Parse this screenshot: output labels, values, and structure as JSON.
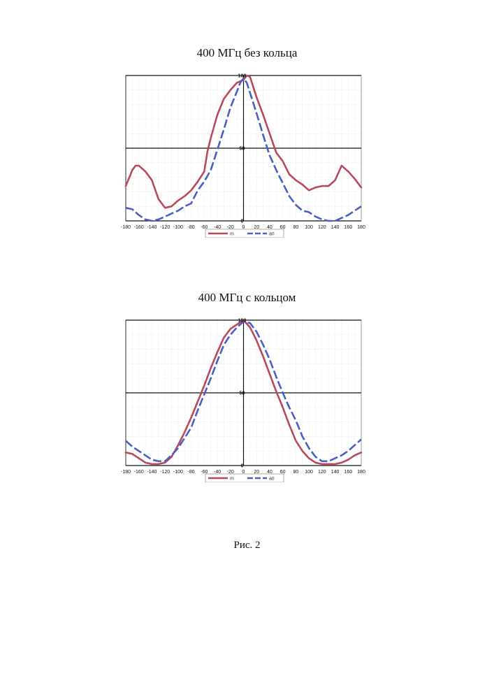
{
  "chart_data": [
    {
      "type": "line",
      "title": "400 МГц без кольца",
      "xlim": [
        -180,
        180
      ],
      "ylim": [
        0,
        100
      ],
      "x_ticks": [
        "-180",
        "-160",
        "-140",
        "-120",
        "-100",
        "-80",
        "-60",
        "-40",
        "-20",
        "0",
        "20",
        "40",
        "60",
        "80",
        "100",
        "120",
        "140",
        "160",
        "180"
      ],
      "y_ticks": [
        "0",
        "50",
        "100"
      ],
      "grid": true,
      "legend": "bottom-center",
      "series": [
        {
          "name": "m",
          "color": "#b84a5a",
          "dash": "solid",
          "x": [
            -180,
            -170,
            -165,
            -160,
            -150,
            -140,
            -130,
            -120,
            -110,
            -100,
            -90,
            -80,
            -70,
            -60,
            -55,
            -50,
            -40,
            -30,
            -20,
            -10,
            0,
            5,
            10,
            20,
            30,
            40,
            50,
            60,
            70,
            80,
            90,
            100,
            110,
            120,
            130,
            140,
            150,
            160,
            170,
            180
          ],
          "y": [
            24,
            35,
            38,
            38,
            34,
            28,
            15,
            9,
            10,
            14,
            17,
            21,
            27,
            34,
            48,
            57,
            73,
            84,
            90,
            95,
            97,
            100,
            99,
            85,
            73,
            60,
            47,
            41,
            32,
            28,
            25,
            21,
            23,
            24,
            24,
            28,
            38,
            34,
            29,
            23
          ]
        },
        {
          "name": "aп",
          "color": "#4a5fc4",
          "dash": "dashed",
          "x": [
            -180,
            -170,
            -160,
            -150,
            -140,
            -130,
            -120,
            -110,
            -100,
            -90,
            -80,
            -70,
            -60,
            -50,
            -40,
            -30,
            -20,
            -10,
            -5,
            0,
            5,
            10,
            20,
            30,
            40,
            50,
            60,
            70,
            80,
            90,
            100,
            110,
            120,
            130,
            140,
            150,
            160,
            170,
            180
          ],
          "y": [
            9,
            8,
            4,
            1,
            0,
            1,
            3,
            5,
            7,
            10,
            12,
            21,
            27,
            35,
            49,
            63,
            78,
            89,
            95,
            98,
            95,
            88,
            74,
            59,
            45,
            35,
            26,
            17,
            11,
            7,
            6,
            3,
            1,
            0,
            0,
            2,
            4,
            7,
            10
          ]
        }
      ]
    },
    {
      "type": "line",
      "title": "400 МГц с кольцом",
      "xlim": [
        -180,
        180
      ],
      "ylim": [
        0,
        100
      ],
      "x_ticks": [
        "-180",
        "-160",
        "-140",
        "-120",
        "-100",
        "-80",
        "-60",
        "-40",
        "-20",
        "0",
        "20",
        "40",
        "60",
        "80",
        "100",
        "120",
        "140",
        "160",
        "180"
      ],
      "y_ticks": [
        "0",
        "50",
        "100"
      ],
      "grid": true,
      "legend": "bottom-center",
      "series": [
        {
          "name": "m",
          "color": "#b84a5a",
          "dash": "solid",
          "x": [
            -180,
            -170,
            -160,
            -150,
            -140,
            -130,
            -120,
            -110,
            -100,
            -90,
            -80,
            -70,
            -60,
            -50,
            -40,
            -30,
            -20,
            -10,
            0,
            10,
            20,
            30,
            40,
            50,
            60,
            70,
            80,
            90,
            100,
            110,
            120,
            130,
            140,
            150,
            160,
            170,
            180
          ],
          "y": [
            9,
            8,
            5,
            2,
            1,
            1,
            2,
            6,
            14,
            23,
            33,
            44,
            55,
            67,
            78,
            88,
            94,
            97,
            100,
            95,
            86,
            75,
            63,
            51,
            40,
            28,
            17,
            10,
            5,
            2,
            1,
            1,
            1,
            2,
            4,
            7,
            9
          ]
        },
        {
          "name": "aп",
          "color": "#4a5fc4",
          "dash": "dashed",
          "x": [
            -180,
            -170,
            -160,
            -150,
            -140,
            -130,
            -120,
            -110,
            -100,
            -90,
            -80,
            -70,
            -60,
            -50,
            -40,
            -30,
            -20,
            -10,
            0,
            10,
            20,
            30,
            40,
            50,
            60,
            70,
            80,
            90,
            100,
            110,
            120,
            130,
            140,
            150,
            160,
            170,
            180
          ],
          "y": [
            17,
            13,
            10,
            7,
            4,
            3,
            3,
            7,
            12,
            19,
            26,
            38,
            49,
            60,
            72,
            83,
            90,
            95,
            99,
            98,
            92,
            83,
            73,
            61,
            50,
            40,
            31,
            20,
            12,
            6,
            3,
            3,
            5,
            7,
            10,
            14,
            18
          ]
        }
      ]
    }
  ],
  "caption": "Рис. 2"
}
